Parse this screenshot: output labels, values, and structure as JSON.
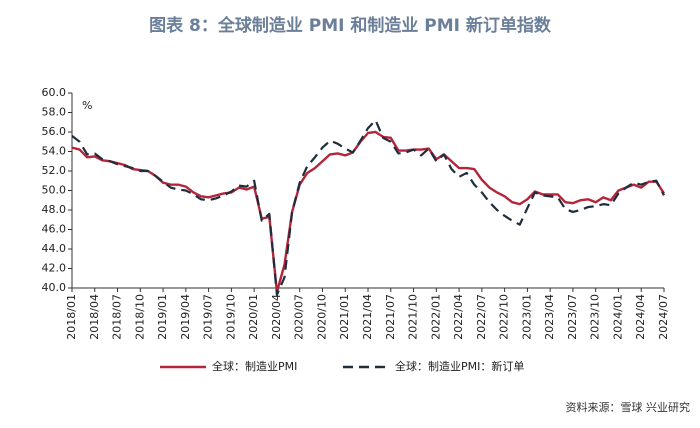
{
  "chart_data": {
    "type": "line",
    "title": "图表 8：全球制造业 PMI 和制造业 PMI 新订单指数",
    "y_unit": "%",
    "source": "资料来源：雪球 兴业研究",
    "categories": [
      "2018/01",
      null,
      null,
      "2018/04",
      null,
      null,
      "2018/07",
      null,
      null,
      "2018/10",
      null,
      null,
      "2019/01",
      null,
      null,
      "2019/04",
      null,
      null,
      "2019/07",
      null,
      null,
      "2019/10",
      null,
      null,
      "2020/01",
      null,
      null,
      "2020/04",
      null,
      null,
      "2020/07",
      null,
      null,
      "2020/10",
      null,
      null,
      "2021/01",
      null,
      null,
      "2021/04",
      null,
      null,
      "2021/07",
      null,
      null,
      "2021/10",
      null,
      null,
      "2022/01",
      null,
      null,
      "2022/04",
      null,
      null,
      "2022/07",
      null,
      null,
      "2022/10",
      null,
      null,
      "2023/01",
      null,
      null,
      "2023/04",
      null,
      null,
      "2023/07",
      null,
      null,
      "2023/10",
      null,
      null,
      "2024/01",
      null,
      null,
      "2024/04",
      null,
      null,
      "2024/07"
    ],
    "series": [
      {
        "name": "全球：制造业PMI",
        "color": "#b5253a",
        "dash": false,
        "values": [
          54.4,
          54.2,
          53.4,
          53.5,
          53.1,
          53.0,
          52.8,
          52.6,
          52.2,
          52.1,
          52.0,
          51.5,
          50.8,
          50.6,
          50.6,
          50.4,
          49.8,
          49.4,
          49.3,
          49.5,
          49.7,
          49.8,
          50.3,
          50.1,
          50.4,
          47.1,
          47.3,
          39.6,
          42.4,
          47.8,
          50.6,
          51.8,
          52.3,
          53.0,
          53.7,
          53.8,
          53.6,
          53.9,
          55.0,
          55.9,
          56.0,
          55.5,
          55.4,
          54.1,
          54.1,
          54.2,
          54.2,
          54.3,
          53.2,
          53.7,
          53.0,
          52.3,
          52.3,
          52.2,
          51.1,
          50.3,
          49.8,
          49.4,
          48.8,
          48.6,
          49.1,
          49.9,
          49.6,
          49.6,
          49.6,
          48.8,
          48.7,
          49.0,
          49.1,
          48.8,
          49.3,
          49.0,
          50.0,
          50.3,
          50.6,
          50.3,
          50.9,
          50.9,
          49.7
        ]
      },
      {
        "name": "全球：制造业PMI：新订单",
        "color": "#1f2d3d",
        "dash": true,
        "values": [
          55.6,
          55.0,
          53.7,
          53.8,
          53.2,
          53.0,
          52.7,
          52.5,
          52.3,
          52.0,
          52.0,
          51.5,
          50.9,
          50.3,
          50.1,
          50.0,
          49.6,
          49.1,
          49.0,
          49.2,
          49.5,
          49.9,
          50.5,
          50.4,
          51.0,
          46.9,
          47.6,
          39.3,
          41.1,
          47.8,
          50.8,
          52.5,
          53.4,
          54.4,
          55.1,
          54.8,
          54.3,
          53.9,
          55.1,
          56.4,
          57.2,
          55.4,
          55.0,
          53.8,
          53.9,
          54.2,
          53.6,
          54.3,
          53.0,
          53.7,
          52.2,
          51.4,
          51.8,
          50.6,
          49.8,
          48.8,
          48.0,
          47.4,
          46.9,
          46.5,
          48.2,
          49.8,
          49.5,
          49.4,
          49.3,
          48.1,
          47.8,
          48.0,
          48.3,
          48.4,
          48.6,
          48.5,
          49.7,
          50.3,
          50.8,
          50.6,
          50.9,
          51.0,
          49.5
        ]
      }
    ],
    "ylim": [
      40,
      60
    ],
    "yticks": [
      {
        "value": 40,
        "label": "40.0"
      },
      {
        "value": 42,
        "label": "42.0"
      },
      {
        "value": 44,
        "label": "44.0"
      },
      {
        "value": 46,
        "label": "46.0"
      },
      {
        "value": 48,
        "label": "48.0"
      },
      {
        "value": 50,
        "label": "50.0"
      },
      {
        "value": 52,
        "label": "52.0"
      },
      {
        "value": 54,
        "label": "54.0"
      },
      {
        "value": 56,
        "label": "56.0"
      },
      {
        "value": 58,
        "label": "58.0"
      },
      {
        "value": 60,
        "label": "60.0"
      }
    ],
    "grid": false
  }
}
